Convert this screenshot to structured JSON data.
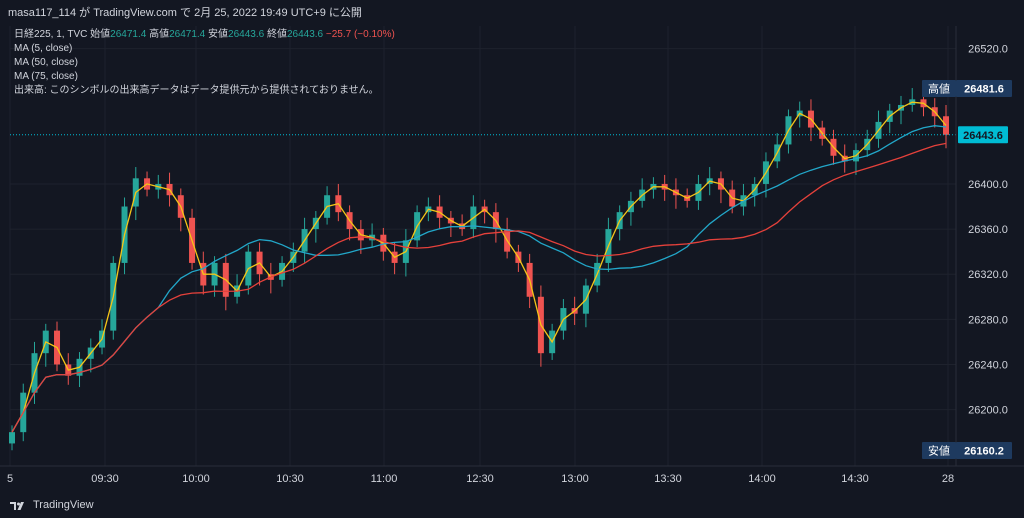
{
  "header": {
    "text": "masa117_114 が TradingView.com で 2月 25, 2022 19:49 UTC+9 に公開"
  },
  "legend": {
    "symbol": "日経225, 1, TVC",
    "open_label": "始値",
    "open_value": "26471.4",
    "high_label": "高値",
    "high_value": "26471.4",
    "low_label": "安値",
    "low_value": "26443.6",
    "close_label": "終値",
    "close_value": "26443.6",
    "change": "−25.7 (−0.10%)",
    "ma5": "MA (5, close)",
    "ma50": "MA (50, close)",
    "ma75": "MA (75, close)",
    "volume_note": "出来高: このシンボルの出来高データはデータ提供元から提供されておりません。"
  },
  "price_labels": {
    "high_tag": "高値",
    "high_value": "26481.6",
    "last_value": "26443.6",
    "low_tag": "安値",
    "low_value": "26160.2"
  },
  "footer": {
    "brand": "TradingView"
  },
  "colors": {
    "background": "#131722",
    "up": "#26a69a",
    "down": "#ef5350",
    "ma5": "#f5c518",
    "ma50": "#22a7c9",
    "ma75": "#e5413b",
    "last_price": "#00bcd4",
    "tag_bg": "#1e3a5f"
  },
  "chart_data": {
    "type": "candlestick",
    "title": "日経225, 1, TVC",
    "x_ticks": [
      "5",
      "09:30",
      "10:00",
      "10:30",
      "11:00",
      "12:30",
      "13:00",
      "13:30",
      "14:00",
      "14:30",
      "28"
    ],
    "y_ticks": [
      26200.0,
      26240.0,
      26280.0,
      26320.0,
      26360.0,
      26400.0,
      26520.0
    ],
    "ylim": [
      26150,
      26540
    ],
    "last_price": 26443.6,
    "session_high": 26481.6,
    "session_low": 26160.2,
    "close_series": [
      26180,
      26215,
      26250,
      26270,
      26240,
      26230,
      26245,
      26255,
      26270,
      26330,
      26380,
      26405,
      26395,
      26400,
      26390,
      26370,
      26330,
      26310,
      26330,
      26300,
      26310,
      26340,
      26320,
      26315,
      26330,
      26340,
      26360,
      26370,
      26390,
      26375,
      26360,
      26350,
      26355,
      26340,
      26330,
      26350,
      26375,
      26380,
      26370,
      26365,
      26360,
      26380,
      26375,
      26360,
      26340,
      26330,
      26300,
      26250,
      26270,
      26290,
      26285,
      26310,
      26330,
      26360,
      26375,
      26385,
      26395,
      26400,
      26395,
      26390,
      26385,
      26400,
      26405,
      26395,
      26380,
      26390,
      26400,
      26420,
      26435,
      26460,
      26465,
      26450,
      26440,
      26425,
      26420,
      26430,
      26440,
      26455,
      26465,
      26470,
      26475,
      26468,
      26460,
      26443.6
    ],
    "series": [
      {
        "name": "MA (5, close)"
      },
      {
        "name": "MA (50, close)"
      },
      {
        "name": "MA (75, close)"
      }
    ]
  }
}
